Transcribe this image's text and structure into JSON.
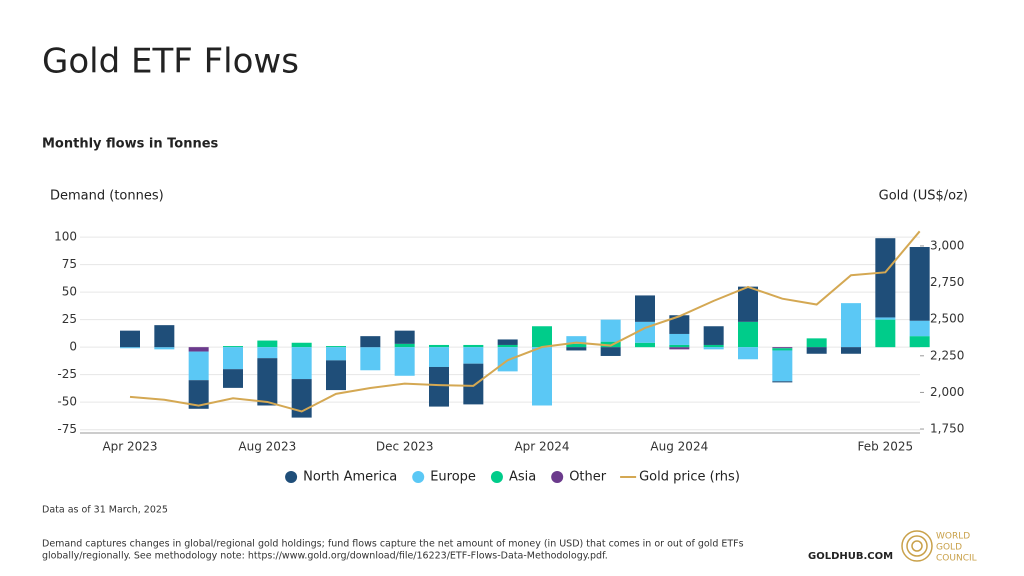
{
  "chart_data": {
    "type": "bar",
    "title": "Gold ETF Flows",
    "subtitle": "Monthly flows in Tonnes",
    "y_axis_label": "Demand (tonnes)",
    "y2_axis_label": "Gold (US$/oz)",
    "categories": [
      "Apr 2023",
      null,
      null,
      null,
      "Aug 2023",
      null,
      null,
      null,
      "Dec 2023",
      null,
      null,
      null,
      "Apr 2024",
      null,
      null,
      null,
      "Aug 2024",
      null,
      null,
      null,
      null,
      null,
      "Feb 2025",
      null
    ],
    "series": [
      {
        "name": "North America",
        "color": "#1f4e79",
        "values": [
          15,
          20,
          -26,
          -17,
          -43,
          -35,
          -27,
          10,
          12,
          -36,
          -37,
          5,
          0,
          -3,
          -8,
          24,
          17,
          17,
          32,
          -1,
          -6,
          -6,
          72,
          67
        ]
      },
      {
        "name": "Europe",
        "color": "#5bc8f5",
        "values": [
          -1,
          -2,
          -26,
          -20,
          -10,
          -29,
          -12,
          -21,
          -26,
          -18,
          -15,
          -22,
          -53,
          7,
          20,
          19,
          10,
          -2,
          -11,
          -28,
          0,
          40,
          2,
          14
        ]
      },
      {
        "name": "Asia",
        "color": "#00cc8a",
        "values": [
          0,
          0,
          0,
          1,
          6,
          4,
          1,
          0,
          3,
          2,
          2,
          2,
          19,
          3,
          5,
          4,
          2,
          2,
          23,
          -2,
          8,
          0,
          25,
          10
        ]
      },
      {
        "name": "Other",
        "color": "#6b3a8c",
        "values": [
          0,
          0,
          -4,
          0,
          0,
          0,
          0,
          0,
          0,
          0,
          0,
          0,
          0,
          0,
          0,
          0,
          -2,
          0,
          0,
          -1,
          0,
          0,
          0,
          0
        ]
      },
      {
        "name": "Gold price (rhs)",
        "color": "#d4a853",
        "type": "line",
        "axis": "y2",
        "values": [
          1970,
          1950,
          1910,
          1960,
          1935,
          1870,
          1990,
          2030,
          2060,
          2050,
          2045,
          2220,
          2310,
          2340,
          2320,
          2440,
          2520,
          2625,
          2720,
          2640,
          2600,
          2800,
          2820,
          3100
        ]
      }
    ],
    "ylim": [
      -78,
      111
    ],
    "yticks": [
      -75,
      -50,
      -25,
      0,
      25,
      50,
      75,
      100
    ],
    "y2lim": [
      1723,
      3143
    ],
    "y2ticks": [
      {
        "value": 1750,
        "label": "1,750"
      },
      {
        "value": 2000,
        "label": "2,000"
      },
      {
        "value": 2250,
        "label": "2,250"
      },
      {
        "value": 2500,
        "label": "2,500"
      },
      {
        "value": 2750,
        "label": "2,750"
      },
      {
        "value": 3000,
        "label": "3,000"
      }
    ],
    "grid": true,
    "legend": "bottom"
  },
  "note": "Data as of 31 March, 2025",
  "footnote": [
    "Demand captures changes in global/regional gold holdings; fund flows capture the net amount of money (in USD) that comes in or out of gold ETFs",
    "globally/regionally. See methodology note: https://www.gold.org/download/file/16223/ETF-Flows-Data-Methodology.pdf."
  ],
  "site": "GOLDHUB.COM",
  "logo_text": [
    "WORLD",
    "GOLD",
    "COUNCIL"
  ]
}
